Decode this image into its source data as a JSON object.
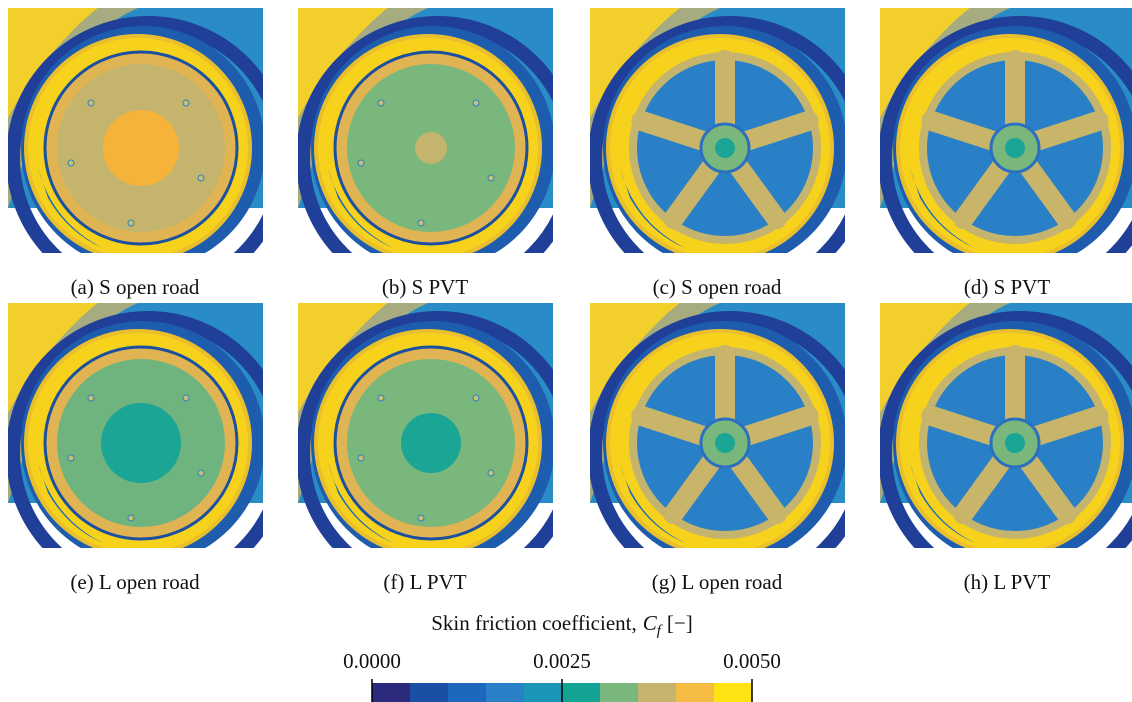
{
  "panels": [
    {
      "caption": "(a) S open road"
    },
    {
      "caption": "(b) S PVT"
    },
    {
      "caption": "(c) S open road"
    },
    {
      "caption": "(d) S PVT"
    },
    {
      "caption": "(e) L open road"
    },
    {
      "caption": "(f) L PVT"
    },
    {
      "caption": "(g) L open road"
    },
    {
      "caption": "(h) L PVT"
    }
  ],
  "colorbar": {
    "title": "Skin friction coefficient,",
    "symbol": "C",
    "subscript": "f",
    "unit": "[−]",
    "lim": [
      0,
      0.005
    ],
    "ticks": [
      {
        "value": 0,
        "label": "0.0000"
      },
      {
        "value": 0.0025,
        "label": "0.0025"
      },
      {
        "value": 0.005,
        "label": "0.0050"
      }
    ],
    "colors": [
      "#2c2a7c",
      "#1a4fa6",
      "#1c68be",
      "#2a80c6",
      "#1b96b8",
      "#13a394",
      "#7ab77c",
      "#c5b46d",
      "#f6bb42",
      "#fde312"
    ]
  }
}
